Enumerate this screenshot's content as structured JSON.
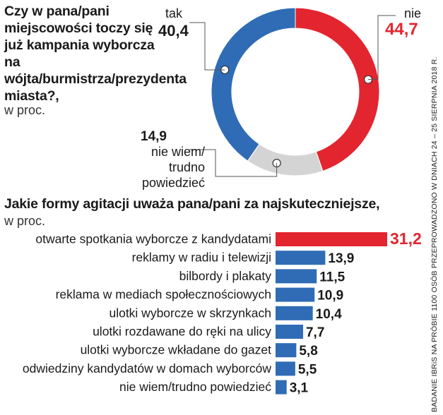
{
  "chart_data": [
    {
      "type": "pie",
      "title": "Czy w pana/pani miejscowości toczy się już kampania wyborcza na wójta/burmistrza/prezydenta miasta?,",
      "unit": "w proc.",
      "slices": [
        {
          "label": "nie",
          "value": 44.7,
          "value_text": "44,7",
          "color": "#e3252f"
        },
        {
          "label": "nie wiem/ trudno powiedzieć",
          "value": 14.9,
          "value_text": "14,9",
          "color": "#d4d4d4"
        },
        {
          "label": "tak",
          "value": 40.4,
          "value_text": "40,4",
          "color": "#2f6cb5"
        }
      ]
    },
    {
      "type": "bar",
      "orientation": "horizontal",
      "title": "Jakie formy agitacji uważa pana/pani za najskuteczniejsze,",
      "unit": "w proc.",
      "categories": [
        "otwarte spotkania wyborcze z kandydatami",
        "reklamy w radiu i telewizji",
        "bilbordy i plakaty",
        "reklama w mediach społecznościowych",
        "ulotki wyborcze w skrzynkach",
        "ulotki rozdawane do ręki na ulicy",
        "ulotki wyborcze wkładane do gazet",
        "odwiedziny kandydatów w domach wyborców",
        "nie wiem/trudno powiedzieć"
      ],
      "values": [
        31.2,
        13.9,
        11.5,
        10.9,
        10.4,
        7.7,
        5.8,
        5.5,
        3.1
      ],
      "value_labels": [
        "31,2",
        "13,9",
        "11,5",
        "10,9",
        "10,4",
        "7,7",
        "5,8",
        "5,5",
        "3,1"
      ],
      "highlight_color": "#e3252f",
      "bar_color": "#2f6cb5",
      "xlim": [
        0,
        31.2
      ]
    }
  ],
  "source": "BADANIE IBRiS NA PRÓBIE 1100 OSÓB PRZEPROWADZONO W DNIACH 24 – 25 SIERPNIA 2018 R."
}
